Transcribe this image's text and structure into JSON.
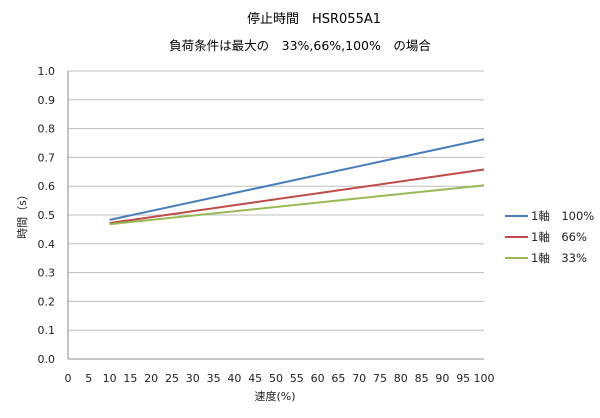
{
  "chart_data": {
    "type": "line",
    "title": "停止時間　HSR055A1",
    "subtitle": "負荷条件は最大の　33%,66%,100%　の場合",
    "xlabel": "速度(%)",
    "ylabel": "時間（s）",
    "xlim": [
      0,
      100
    ],
    "ylim": [
      0,
      1.0
    ],
    "x_ticks": [
      "0",
      "5",
      "10",
      "15",
      "20",
      "25",
      "30",
      "35",
      "40",
      "45",
      "50",
      "55",
      "60",
      "65",
      "70",
      "75",
      "80",
      "85",
      "90",
      "95",
      "100"
    ],
    "y_ticks": [
      "0.0",
      "0.1",
      "0.2",
      "0.3",
      "0.4",
      "0.5",
      "0.6",
      "0.7",
      "0.8",
      "0.9",
      "1.0"
    ],
    "grid": "horizontal",
    "legend_position": "right",
    "series": [
      {
        "name": "1軸　100%",
        "color": "#4a7ebb",
        "x": [
          10,
          100
        ],
        "y": [
          0.483,
          0.763
        ]
      },
      {
        "name": "1軸　66%",
        "color": "#be4b48",
        "x": [
          10,
          100
        ],
        "y": [
          0.472,
          0.658
        ]
      },
      {
        "name": "1軸　33%",
        "color": "#98b954",
        "x": [
          10,
          100
        ],
        "y": [
          0.468,
          0.603
        ]
      }
    ]
  }
}
